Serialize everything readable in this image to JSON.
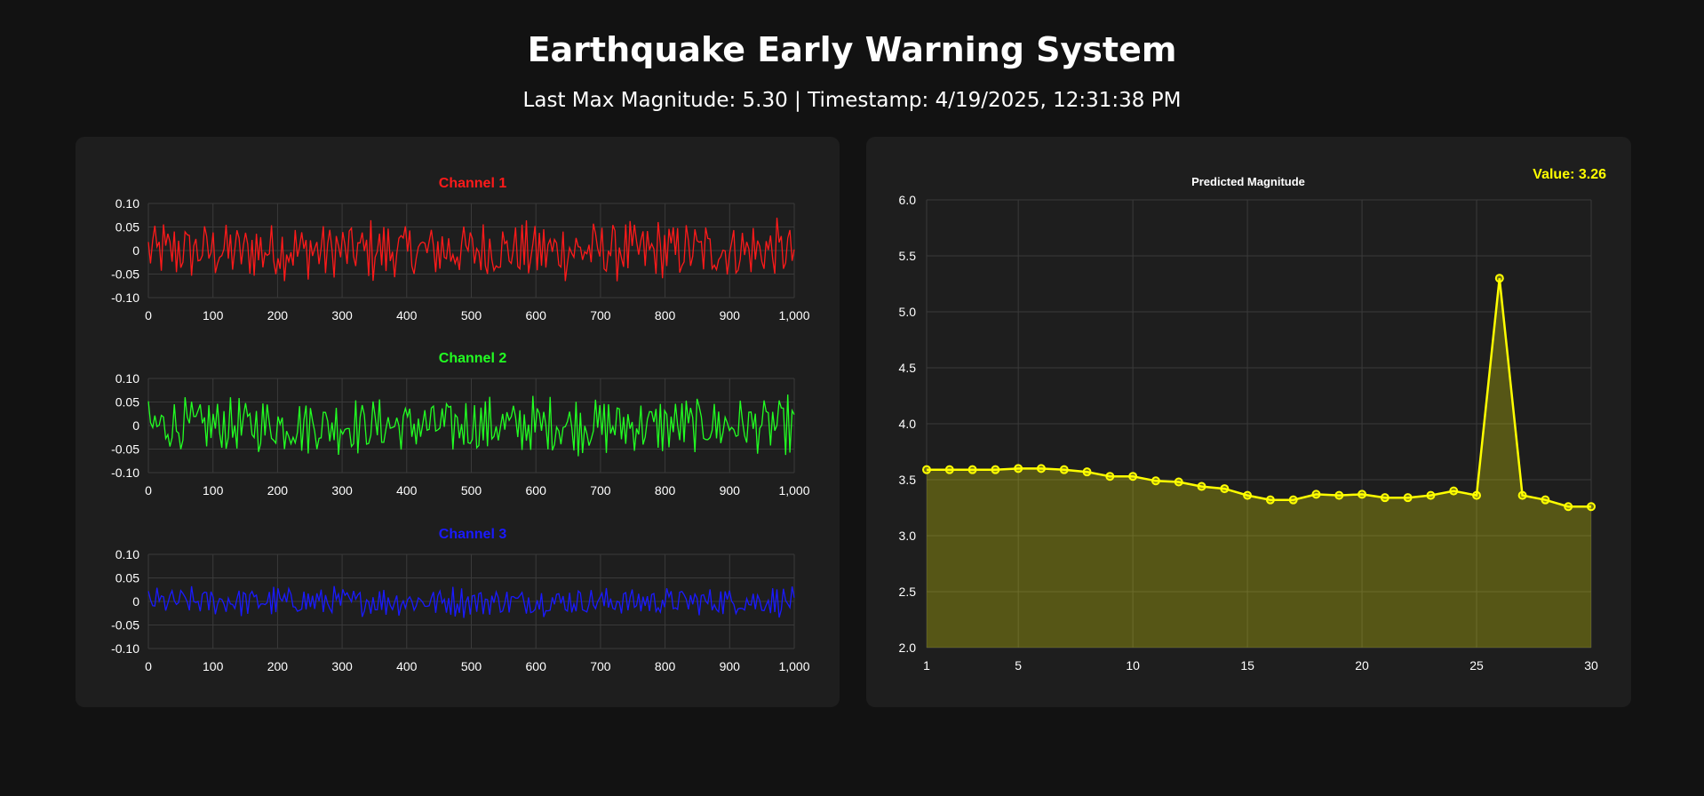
{
  "page": {
    "title": "Earthquake Early Warning System",
    "status": "Last Max Magnitude: 5.30 | Timestamp: 4/19/2025, 12:31:38 PM"
  },
  "channels": [
    {
      "title": "Channel 1",
      "color": "#ff1a1a",
      "amplitude": 0.045
    },
    {
      "title": "Channel 2",
      "color": "#22ff22",
      "amplitude": 0.042
    },
    {
      "title": "Channel 3",
      "color": "#1a1aff",
      "amplitude": 0.022
    }
  ],
  "channel_axes": {
    "x_ticks": [
      "0",
      "100",
      "200",
      "300",
      "400",
      "500",
      "600",
      "700",
      "800",
      "900",
      "1,000"
    ],
    "y_ticks": [
      "0.10",
      "0.05",
      "0",
      "-0.05",
      "-0.10"
    ]
  },
  "prediction": {
    "title": "Predicted Magnitude",
    "value_label": "Value: 3.26",
    "color": "#ffff00",
    "x_ticks": [
      "1",
      "5",
      "10",
      "15",
      "20",
      "25",
      "30"
    ],
    "y_ticks": [
      "6.0",
      "5.5",
      "5.0",
      "4.5",
      "4.0",
      "3.5",
      "3.0",
      "2.5",
      "2.0"
    ]
  },
  "chart_data": [
    {
      "type": "line",
      "title": "Channel 1",
      "xlim": [
        0,
        1000
      ],
      "ylim": [
        -0.1,
        0.1
      ],
      "series": [
        {
          "name": "Channel 1",
          "values": "noise signal, amplitude approx ±0.08"
        }
      ]
    },
    {
      "type": "line",
      "title": "Channel 2",
      "xlim": [
        0,
        1000
      ],
      "ylim": [
        -0.1,
        0.1
      ],
      "series": [
        {
          "name": "Channel 2",
          "values": "noise signal, amplitude approx ±0.08"
        }
      ]
    },
    {
      "type": "line",
      "title": "Channel 3",
      "xlim": [
        0,
        1000
      ],
      "ylim": [
        -0.1,
        0.1
      ],
      "series": [
        {
          "name": "Channel 3",
          "values": "noise signal, amplitude approx ±0.06"
        }
      ]
    },
    {
      "type": "area",
      "title": "Predicted Magnitude",
      "x": [
        1,
        2,
        3,
        4,
        5,
        6,
        7,
        8,
        9,
        10,
        11,
        12,
        13,
        14,
        15,
        16,
        17,
        18,
        19,
        20,
        21,
        22,
        23,
        24,
        25,
        26,
        27,
        28,
        29,
        30
      ],
      "values": [
        3.59,
        3.59,
        3.59,
        3.59,
        3.6,
        3.6,
        3.59,
        3.57,
        3.53,
        3.53,
        3.49,
        3.48,
        3.44,
        3.42,
        3.36,
        3.32,
        3.32,
        3.37,
        3.36,
        3.37,
        3.34,
        3.34,
        3.36,
        3.4,
        3.36,
        5.3,
        3.36,
        3.32,
        3.26,
        3.26
      ],
      "xlim": [
        1,
        30
      ],
      "ylim": [
        2.0,
        6.0
      ]
    }
  ]
}
